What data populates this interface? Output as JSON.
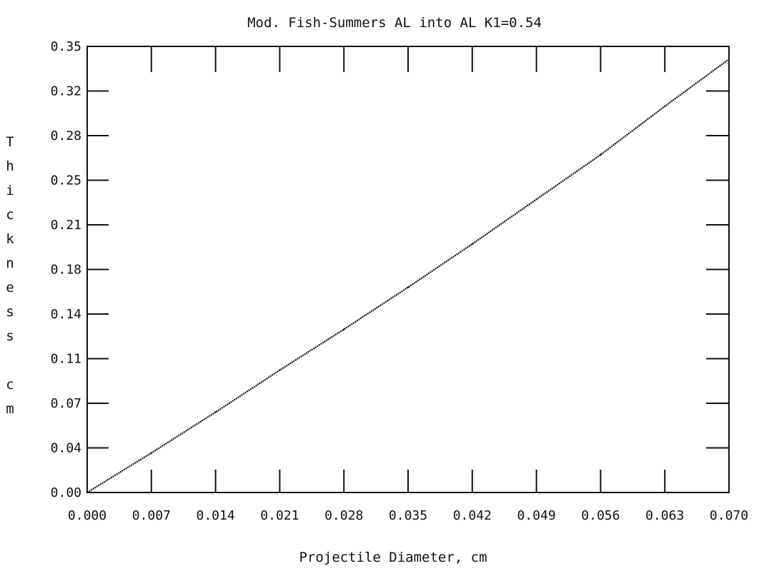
{
  "chart_data": {
    "type": "line",
    "title": "Mod. Fish-Summers AL into AL K1=0.54",
    "xlabel": "Projectile Diameter, cm",
    "ylabel": "Thickness cm",
    "ylabel_chars": [
      "T",
      "h",
      "i",
      "c",
      "k",
      "n",
      "e",
      "s",
      "s",
      "",
      "c",
      "m"
    ],
    "xlim": [
      0.0,
      0.07
    ],
    "ylim": [
      0.0,
      0.35
    ],
    "x_tick_labels": [
      "0.000",
      "0.007",
      "0.014",
      "0.021",
      "0.028",
      "0.035",
      "0.042",
      "0.049",
      "0.056",
      "0.063",
      "0.070"
    ],
    "y_tick_labels": [
      "0.00",
      "0.04",
      "0.07",
      "0.11",
      "0.14",
      "0.18",
      "0.21",
      "0.25",
      "0.28",
      "0.32",
      "0.35"
    ],
    "grid": false,
    "legend": "none",
    "series": [
      {
        "x": [
          0.0,
          0.007,
          0.014,
          0.021,
          0.028,
          0.035,
          0.042,
          0.049,
          0.056,
          0.063,
          0.07
        ],
        "y": [
          0.0,
          0.031,
          0.063,
          0.096,
          0.128,
          0.161,
          0.195,
          0.23,
          0.265,
          0.303,
          0.34
        ]
      }
    ],
    "colors": {
      "line": "#111111",
      "axis": "#111111",
      "background": "#ffffff"
    }
  }
}
